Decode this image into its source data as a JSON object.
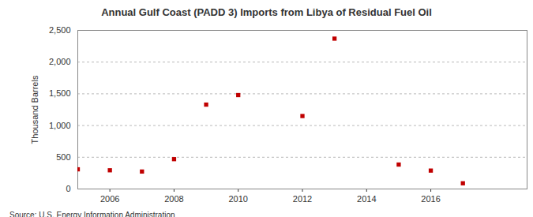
{
  "chart_data": {
    "type": "scatter",
    "title": "Annual Gulf Coast (PADD 3) Imports from Libya of Residual Fuel Oil",
    "y_label": "Thousand Barrels",
    "source": "Source: U.S. Energy Information Administration",
    "x": [
      2005,
      2006,
      2007,
      2008,
      2009,
      2010,
      2012,
      2013,
      2015,
      2016,
      2017
    ],
    "values": [
      310,
      295,
      275,
      470,
      1330,
      1480,
      1150,
      2370,
      385,
      290,
      90
    ],
    "color": "#c00000",
    "marker": "square",
    "xlim": [
      2005,
      2019
    ],
    "xticks": [
      2006,
      2008,
      2010,
      2012,
      2014,
      2016
    ],
    "ylim": [
      0,
      2500
    ],
    "yticks": [
      0,
      500,
      {
        "value": 1000,
        "label": "1,000"
      },
      {
        "value": 1500,
        "label": "1,500"
      },
      {
        "value": 2000,
        "label": "2,000"
      },
      {
        "value": 2500,
        "label": "2,500"
      }
    ],
    "grid": true
  }
}
